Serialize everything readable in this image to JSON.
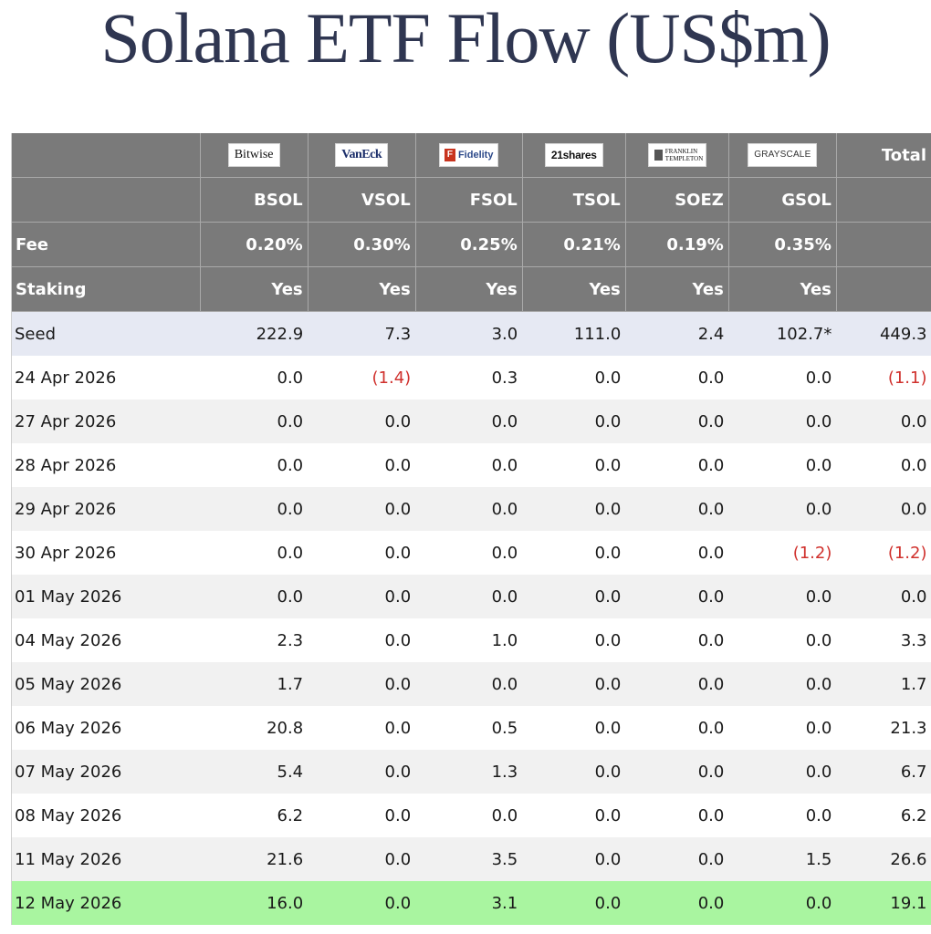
{
  "title": "Solana ETF Flow (US$m)",
  "header": {
    "logos": [
      {
        "name": "Bitwise",
        "icon": "bitwise-logo"
      },
      {
        "name": "VanEck",
        "icon": "vaneck-logo"
      },
      {
        "name": "Fidelity",
        "icon": "fidelity-logo"
      },
      {
        "name": "21shares",
        "icon": "21shares-logo"
      },
      {
        "name": "FRANKLIN TEMPLETON",
        "icon": "franklin-templeton-logo"
      },
      {
        "name": "GRAYSCALE",
        "icon": "grayscale-logo"
      }
    ],
    "total_label": "Total",
    "tickers": [
      "BSOL",
      "VSOL",
      "FSOL",
      "TSOL",
      "SOEZ",
      "GSOL"
    ],
    "fee_label": "Fee",
    "fees": [
      "0.20%",
      "0.30%",
      "0.25%",
      "0.21%",
      "0.19%",
      "0.35%"
    ],
    "staking_label": "Staking",
    "staking": [
      "Yes",
      "Yes",
      "Yes",
      "Yes",
      "Yes",
      "Yes"
    ]
  },
  "rows": [
    {
      "label": "Seed",
      "values": [
        "222.9",
        "7.3",
        "3.0",
        "111.0",
        "2.4",
        "102.7*"
      ],
      "total": "449.3"
    },
    {
      "label": "24 Apr 2026",
      "values": [
        "0.0",
        "(1.4)",
        "0.3",
        "0.0",
        "0.0",
        "0.0"
      ],
      "total": "(1.1)"
    },
    {
      "label": "27 Apr 2026",
      "values": [
        "0.0",
        "0.0",
        "0.0",
        "0.0",
        "0.0",
        "0.0"
      ],
      "total": "0.0"
    },
    {
      "label": "28 Apr 2026",
      "values": [
        "0.0",
        "0.0",
        "0.0",
        "0.0",
        "0.0",
        "0.0"
      ],
      "total": "0.0"
    },
    {
      "label": "29 Apr 2026",
      "values": [
        "0.0",
        "0.0",
        "0.0",
        "0.0",
        "0.0",
        "0.0"
      ],
      "total": "0.0"
    },
    {
      "label": "30 Apr 2026",
      "values": [
        "0.0",
        "0.0",
        "0.0",
        "0.0",
        "0.0",
        "(1.2)"
      ],
      "total": "(1.2)"
    },
    {
      "label": "01 May 2026",
      "values": [
        "0.0",
        "0.0",
        "0.0",
        "0.0",
        "0.0",
        "0.0"
      ],
      "total": "0.0"
    },
    {
      "label": "04 May 2026",
      "values": [
        "2.3",
        "0.0",
        "1.0",
        "0.0",
        "0.0",
        "0.0"
      ],
      "total": "3.3"
    },
    {
      "label": "05 May 2026",
      "values": [
        "1.7",
        "0.0",
        "0.0",
        "0.0",
        "0.0",
        "0.0"
      ],
      "total": "1.7"
    },
    {
      "label": "06 May 2026",
      "values": [
        "20.8",
        "0.0",
        "0.5",
        "0.0",
        "0.0",
        "0.0"
      ],
      "total": "21.3"
    },
    {
      "label": "07 May 2026",
      "values": [
        "5.4",
        "0.0",
        "1.3",
        "0.0",
        "0.0",
        "0.0"
      ],
      "total": "6.7"
    },
    {
      "label": "08 May 2026",
      "values": [
        "6.2",
        "0.0",
        "0.0",
        "0.0",
        "0.0",
        "0.0"
      ],
      "total": "6.2"
    },
    {
      "label": "11 May 2026",
      "values": [
        "21.6",
        "0.0",
        "3.5",
        "0.0",
        "0.0",
        "1.5"
      ],
      "total": "26.6"
    },
    {
      "label": "12 May 2026",
      "values": [
        "16.0",
        "0.0",
        "3.1",
        "0.0",
        "0.0",
        "0.0"
      ],
      "total": "19.1"
    }
  ],
  "colors": {
    "title": "#2f3651",
    "header_bg": "#7a7a7a",
    "seed_bg": "#e6e9f3",
    "alt_row_bg": "#f1f1f1",
    "latest_row_bg": "#a9f5a0",
    "negative": "#d0312d"
  }
}
